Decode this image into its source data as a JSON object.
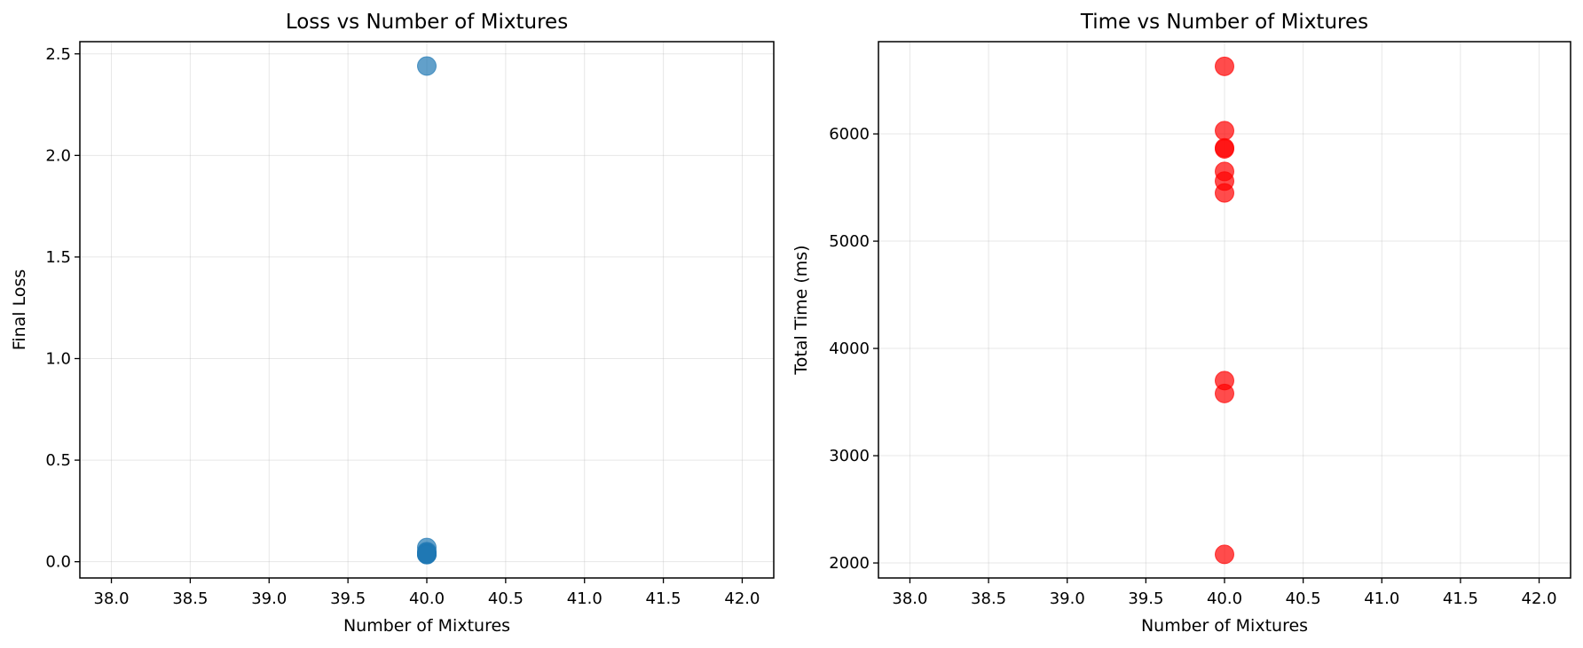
{
  "chart_data": [
    {
      "type": "scatter",
      "title": "Loss vs Number of Mixtures",
      "xlabel": "Number of Mixtures",
      "ylabel": "Final Loss",
      "xlim": [
        37.8,
        42.2
      ],
      "ylim": [
        -0.08,
        2.56
      ],
      "xticks": [
        38.0,
        38.5,
        39.0,
        39.5,
        40.0,
        40.5,
        41.0,
        41.5,
        42.0
      ],
      "xtick_labels": [
        "38.0",
        "38.5",
        "39.0",
        "39.5",
        "40.0",
        "40.5",
        "41.0",
        "41.5",
        "42.0"
      ],
      "yticks": [
        0.0,
        0.5,
        1.0,
        1.5,
        2.0,
        2.5
      ],
      "ytick_labels": [
        "0.0",
        "0.5",
        "1.0",
        "1.5",
        "2.0",
        "2.5"
      ],
      "grid": true,
      "color": "#1f77b4",
      "alpha": 0.7,
      "series": [
        {
          "x": [
            40,
            40,
            40,
            40,
            40,
            40,
            40,
            40,
            40
          ],
          "y": [
            2.44,
            0.07,
            0.05,
            0.045,
            0.04,
            0.04,
            0.038,
            0.035,
            0.035
          ]
        }
      ]
    },
    {
      "type": "scatter",
      "title": "Time vs Number of Mixtures",
      "xlabel": "Number of Mixtures",
      "ylabel": "Total Time (ms)",
      "xlim": [
        37.8,
        42.2
      ],
      "ylim": [
        1860,
        6860
      ],
      "xticks": [
        38.0,
        38.5,
        39.0,
        39.5,
        40.0,
        40.5,
        41.0,
        41.5,
        42.0
      ],
      "xtick_labels": [
        "38.0",
        "38.5",
        "39.0",
        "39.5",
        "40.0",
        "40.5",
        "41.0",
        "41.5",
        "42.0"
      ],
      "yticks": [
        2000,
        3000,
        4000,
        5000,
        6000
      ],
      "ytick_labels": [
        "2000",
        "3000",
        "4000",
        "5000",
        "6000"
      ],
      "grid": true,
      "color": "#ff0000",
      "alpha": 0.7,
      "series": [
        {
          "x": [
            40,
            40,
            40,
            40,
            40,
            40,
            40,
            40,
            40,
            40
          ],
          "y": [
            6630,
            6030,
            5870,
            5860,
            5650,
            5560,
            5450,
            3700,
            3580,
            2080
          ]
        }
      ]
    }
  ]
}
